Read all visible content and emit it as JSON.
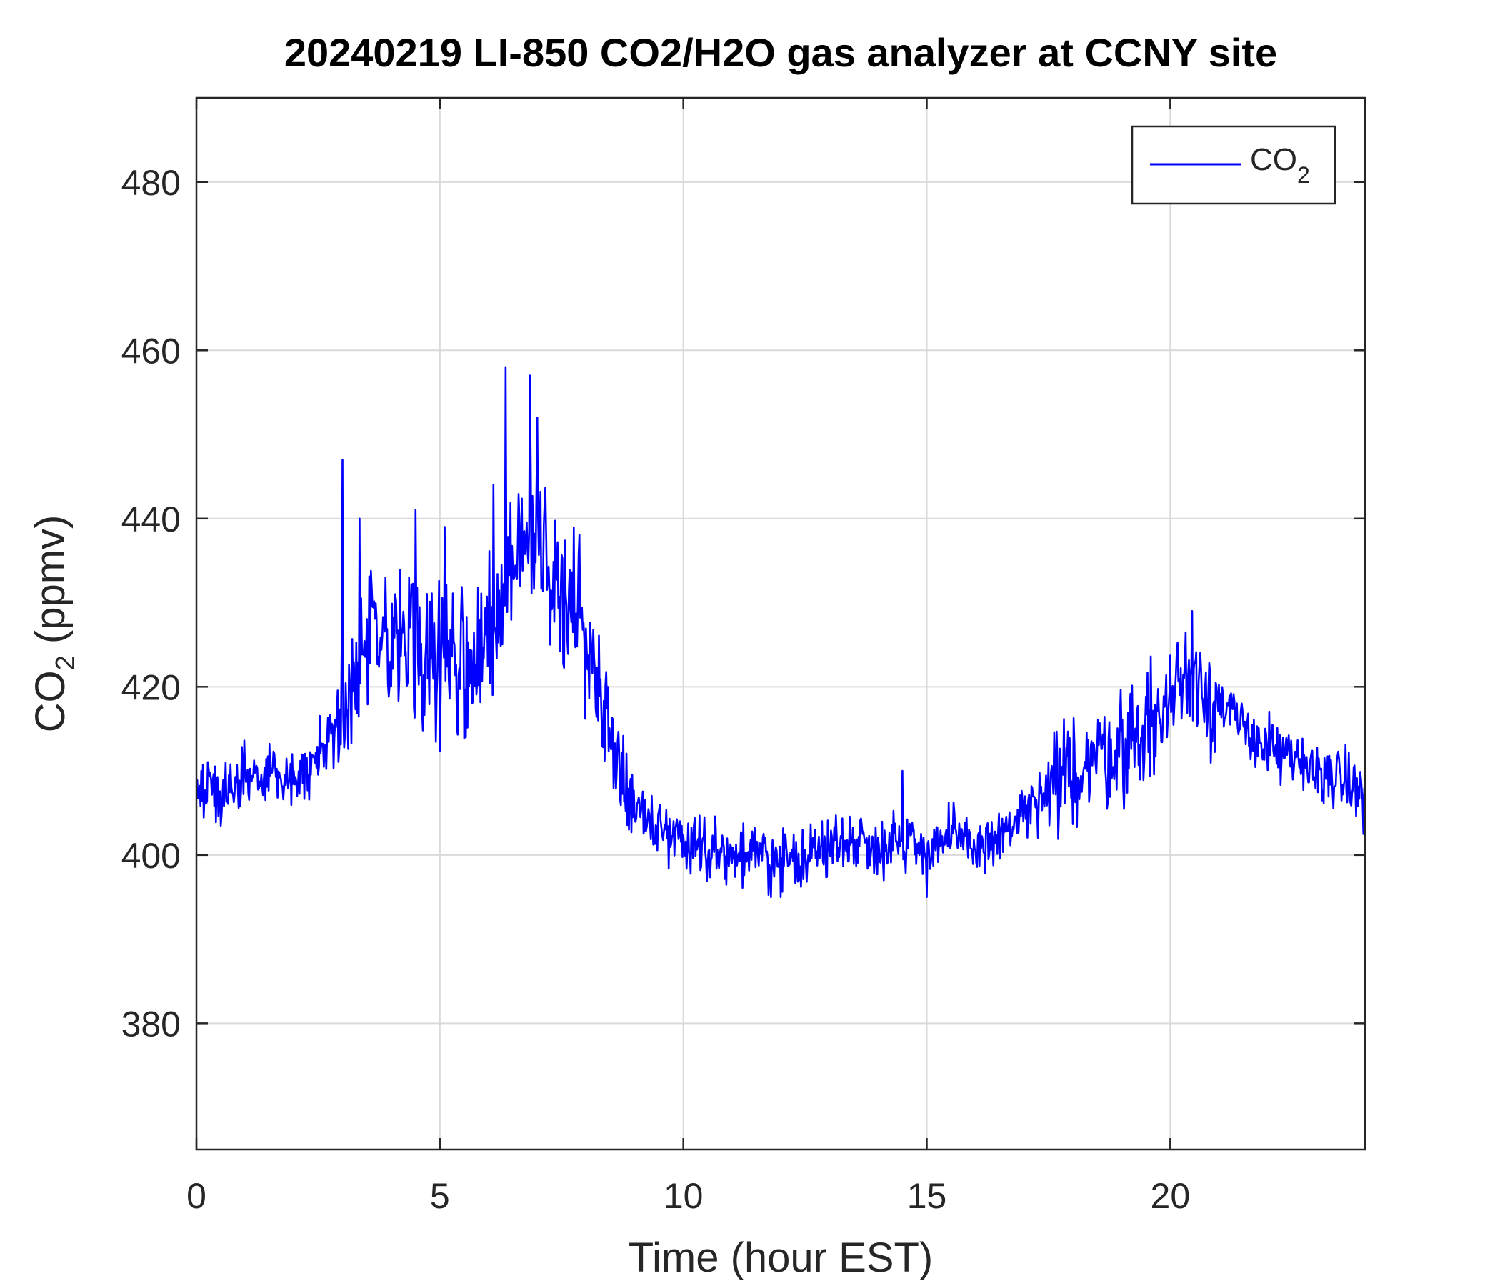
{
  "chart_data": {
    "type": "line",
    "title": "20240219 LI-850 CO2/H2O gas analyzer at CCNY site",
    "xlabel": "Time (hour EST)",
    "ylabel": {
      "main": "CO",
      "sub": "2",
      "unit": " (ppmv)"
    },
    "xlim": [
      0,
      24
    ],
    "ylim": [
      365,
      490
    ],
    "xticks": [
      0,
      5,
      10,
      15,
      20
    ],
    "yticks": [
      380,
      400,
      420,
      440,
      460,
      480
    ],
    "grid": true,
    "legend_position": "top-right",
    "colors": {
      "series": "#0000ff",
      "grid": "#d9d9d9",
      "axis": "#262626"
    },
    "series": [
      {
        "name": "CO2",
        "legend": {
          "main": "CO",
          "sub": "2"
        },
        "x": [
          0,
          0.5,
          1,
          1.5,
          2,
          2.2,
          2.5,
          3,
          3.5,
          4,
          4.5,
          5,
          5.5,
          6,
          6.3,
          6.6,
          7,
          7.3,
          7.6,
          8,
          8.3,
          8.6,
          9,
          9.5,
          10,
          10.5,
          11,
          11.5,
          12,
          12.5,
          13,
          13.5,
          14,
          14.5,
          15,
          15.5,
          16,
          16.5,
          17,
          17.5,
          18,
          18.5,
          19,
          19.5,
          20,
          20.3,
          20.6,
          21,
          21.5,
          22,
          22.5,
          23,
          23.5,
          24
        ],
        "y": [
          408,
          407,
          409,
          410,
          409,
          410,
          412,
          416,
          424,
          425,
          423,
          424,
          423,
          425,
          430,
          436,
          437,
          434,
          430,
          426,
          420,
          412,
          406,
          403,
          402,
          401,
          400,
          400,
          399,
          400,
          401,
          402,
          401,
          402,
          401,
          402,
          401,
          402,
          405,
          407,
          410,
          412,
          413,
          415,
          418,
          422,
          421,
          418,
          415,
          413,
          411,
          410,
          409,
          407
        ],
        "noise_amplitude": 6,
        "spikes": [
          {
            "x": 3.0,
            "y": 447
          },
          {
            "x": 3.35,
            "y": 440
          },
          {
            "x": 4.5,
            "y": 441
          },
          {
            "x": 5.1,
            "y": 439
          },
          {
            "x": 6.1,
            "y": 444
          },
          {
            "x": 6.35,
            "y": 458
          },
          {
            "x": 6.85,
            "y": 457
          },
          {
            "x": 7.0,
            "y": 452
          },
          {
            "x": 20.45,
            "y": 429
          },
          {
            "x": 14.5,
            "y": 410
          },
          {
            "x": 12.0,
            "y": 395
          },
          {
            "x": 15.0,
            "y": 395
          }
        ]
      }
    ]
  }
}
